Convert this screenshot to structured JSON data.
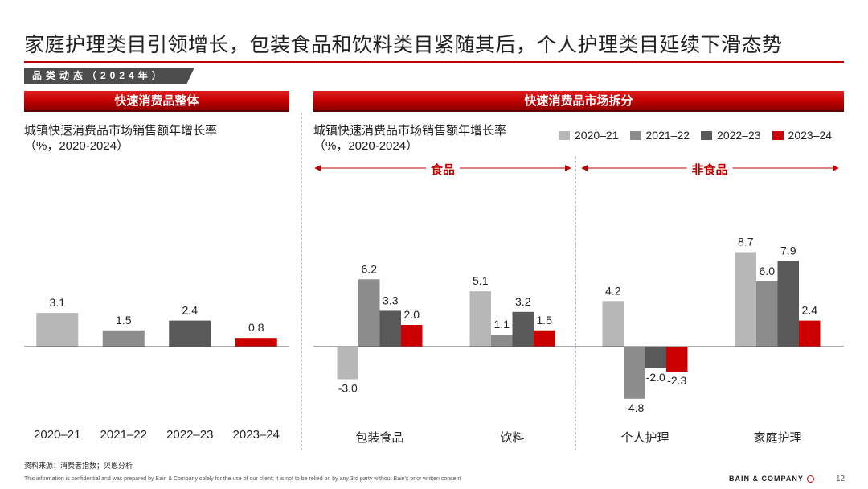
{
  "header": {
    "title": "家庭护理类目引领增长，包装食品和饮料类目紧随其后，个人护理类目延续下滑态势",
    "section_tag": "品类动态（2024年）"
  },
  "panels": {
    "left": {
      "header": "快速消费品整体",
      "subtitle_line1": "城镇快速消费品市场销售额年增长率",
      "subtitle_line2": "（%，2020-2024）"
    },
    "right": {
      "header": "快速消费品市场拆分",
      "subtitle_line1": "城镇快速消费品市场销售额年增长率",
      "subtitle_line2": "（%，2020-2024）",
      "group_food": "食品",
      "group_nonfood": "非食品"
    }
  },
  "legend": {
    "items": [
      {
        "label": "2020–21",
        "color": "#b7b7b7"
      },
      {
        "label": "2021–22",
        "color": "#8c8c8c"
      },
      {
        "label": "2022–23",
        "color": "#595959"
      },
      {
        "label": "2023–24",
        "color": "#cc0000"
      }
    ]
  },
  "chart_data": [
    {
      "type": "bar",
      "categories": [
        "2020–21",
        "2021–22",
        "2022–23",
        "2023–24"
      ],
      "values": [
        3.1,
        1.5,
        2.4,
        0.8
      ],
      "colors": [
        "#b7b7b7",
        "#8c8c8c",
        "#595959",
        "#cc0000"
      ],
      "title": "快速消费品整体",
      "ylabel": "城镇快速消费品市场销售额年增长率（%，2020-2024）",
      "grid": false
    },
    {
      "type": "bar",
      "categories": [
        "包装食品",
        "饮料",
        "个人护理",
        "家庭护理"
      ],
      "series": [
        {
          "name": "2020–21",
          "values": [
            -3.0,
            5.1,
            4.2,
            8.7
          ]
        },
        {
          "name": "2021–22",
          "values": [
            6.2,
            1.1,
            -4.8,
            6.0
          ]
        },
        {
          "name": "2022–23",
          "values": [
            3.3,
            3.2,
            -2.0,
            7.9
          ]
        },
        {
          "name": "2023–24",
          "values": [
            2.0,
            1.5,
            -2.3,
            2.4
          ]
        }
      ],
      "title": "快速消费品市场拆分",
      "ylabel": "城镇快速消费品市场销售额年增长率（%，2020-2024）",
      "grid": false,
      "legend": "top-right"
    }
  ],
  "footer": {
    "source": "资料来源：消费者指数；贝恩分析",
    "disclaimer": "This information is confidential and was prepared by Bain & Company solely for the use of our client; it is not to be relied on by any 3rd party without Bain's prior written consent",
    "brand": "BAIN & COMPANY",
    "page": "12"
  }
}
